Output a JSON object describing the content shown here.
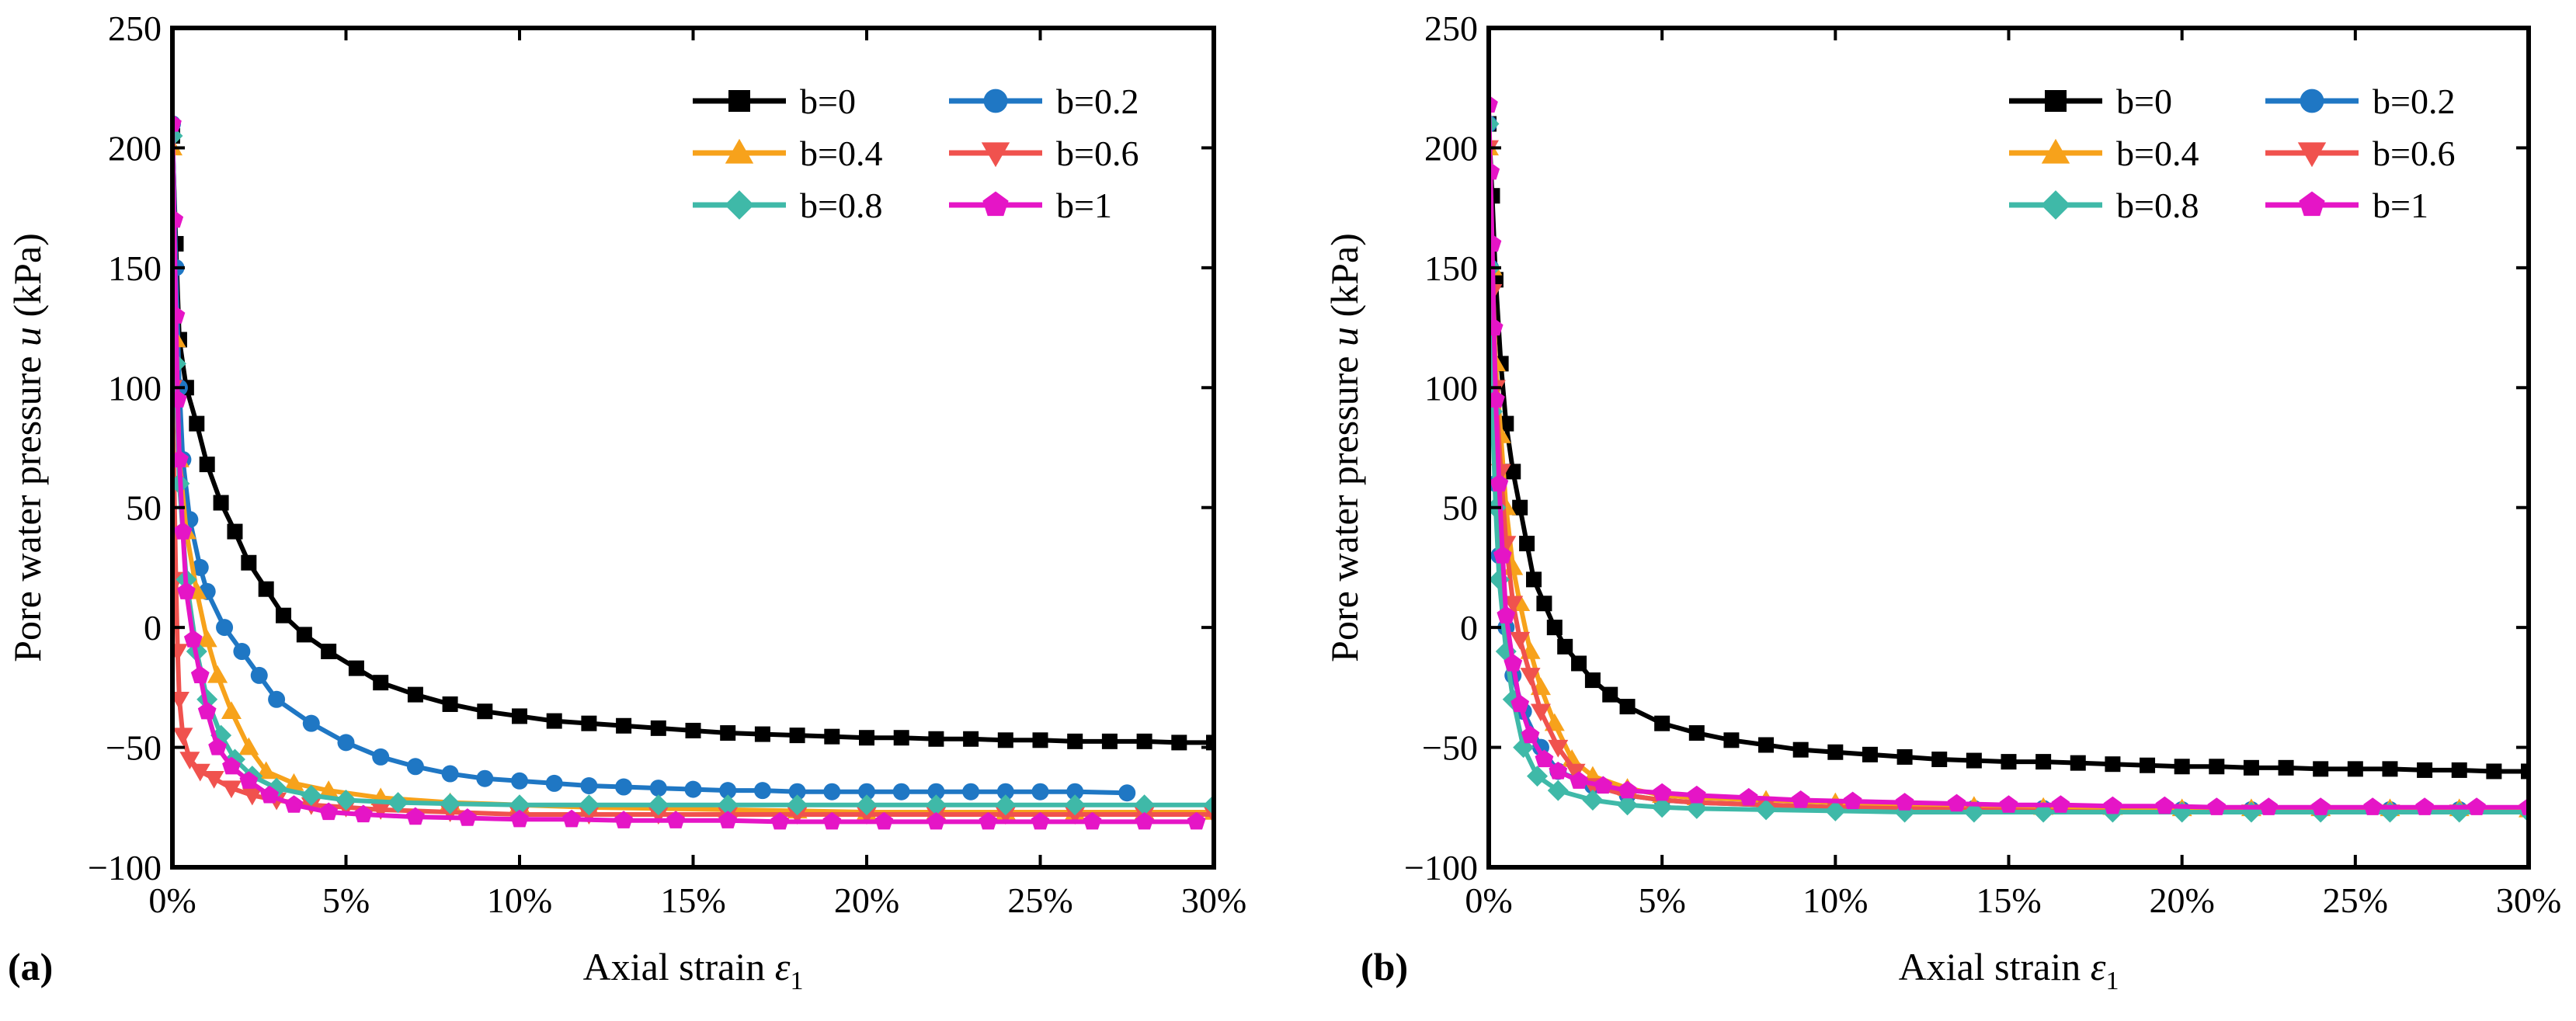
{
  "chart_data": [
    {
      "type": "line",
      "panel_label": "(a)",
      "xlabel": "Axial strain",
      "xlabel_symbol": "ε",
      "xlabel_sub": "1",
      "ylabel": "Pore water pressure",
      "ylabel_symbol": "u",
      "ylabel_unit": "(kPa)",
      "xlim": [
        0,
        30
      ],
      "ylim": [
        -100,
        250
      ],
      "xticks": [
        0,
        5,
        10,
        15,
        20,
        25,
        30
      ],
      "xtick_labels": [
        "0%",
        "5%",
        "10%",
        "15%",
        "20%",
        "25%",
        "30%"
      ],
      "yticks": [
        -100,
        -50,
        0,
        50,
        100,
        150,
        200,
        250
      ],
      "ytick_labels": [
        "−100",
        "−50",
        "0",
        "50",
        "100",
        "150",
        "200",
        "250"
      ],
      "grid": false,
      "legend_position": "top-right",
      "series": [
        {
          "name": "b=0",
          "color": "#000000",
          "marker": "square",
          "x": [
            0,
            0.1,
            0.2,
            0.4,
            0.7,
            1,
            1.4,
            1.8,
            2.2,
            2.7,
            3.2,
            3.8,
            4.5,
            5.3,
            6,
            7,
            8,
            9,
            10,
            11,
            12,
            13,
            14,
            15,
            16,
            17,
            18,
            19,
            20,
            21,
            22,
            23,
            24,
            25,
            26,
            27,
            28,
            29,
            30
          ],
          "y": [
            205,
            160,
            120,
            100,
            85,
            68,
            52,
            40,
            27,
            16,
            5,
            -3,
            -10,
            -17,
            -23,
            -28,
            -32,
            -35,
            -37,
            -39,
            -40,
            -41,
            -42,
            -43,
            -44,
            -44.5,
            -45,
            -45.5,
            -46,
            -46,
            -46.5,
            -46.5,
            -47,
            -47,
            -47.5,
            -47.5,
            -47.5,
            -48,
            -48
          ]
        },
        {
          "name": "b=0.2",
          "color": "#1f77c4",
          "marker": "circle",
          "x": [
            0,
            0.1,
            0.2,
            0.3,
            0.5,
            0.8,
            1,
            1.5,
            2,
            2.5,
            3,
            4,
            5,
            6,
            7,
            8,
            9,
            10,
            11,
            12,
            13,
            14,
            15,
            16,
            17,
            18,
            19,
            20,
            21,
            22,
            23,
            24,
            25,
            26,
            27.5
          ],
          "y": [
            210,
            150,
            100,
            70,
            45,
            25,
            15,
            0,
            -10,
            -20,
            -30,
            -40,
            -48,
            -54,
            -58,
            -61,
            -63,
            -64,
            -65,
            -66,
            -66.5,
            -67,
            -67.5,
            -68,
            -68,
            -68.5,
            -68.5,
            -68.5,
            -68.5,
            -68.5,
            -68.5,
            -68.5,
            -68.5,
            -68.5,
            -69
          ]
        },
        {
          "name": "b=0.4",
          "color": "#f7a21b",
          "marker": "triangle-up",
          "x": [
            0,
            0.1,
            0.2,
            0.4,
            0.7,
            1,
            1.3,
            1.7,
            2.2,
            2.7,
            3.5,
            4.5,
            6,
            8,
            10,
            12,
            14,
            16,
            18,
            20,
            22,
            24,
            26,
            28,
            30
          ],
          "y": [
            200,
            120,
            70,
            40,
            15,
            -5,
            -20,
            -35,
            -50,
            -60,
            -65,
            -68,
            -71,
            -73,
            -74,
            -75,
            -75.5,
            -76,
            -76.5,
            -77,
            -77,
            -77,
            -77,
            -77,
            -77
          ]
        },
        {
          "name": "b=0.6",
          "color": "#f0524e",
          "marker": "triangle-down",
          "x": [
            0,
            0.05,
            0.1,
            0.15,
            0.2,
            0.3,
            0.5,
            0.8,
            1.2,
            1.7,
            2.3,
            3,
            4,
            5,
            6,
            8,
            10,
            12,
            14,
            16,
            18,
            20,
            22,
            24,
            26,
            28,
            30
          ],
          "y": [
            100,
            60,
            20,
            -10,
            -30,
            -45,
            -55,
            -60,
            -63,
            -67,
            -70,
            -72,
            -74,
            -75,
            -76,
            -77,
            -78,
            -78,
            -78,
            -78,
            -78,
            -78,
            -78,
            -78,
            -78,
            -78,
            -78
          ]
        },
        {
          "name": "b=0.8",
          "color": "#3fb9a8",
          "marker": "diamond",
          "x": [
            0,
            0.1,
            0.2,
            0.4,
            0.7,
            1,
            1.4,
            1.8,
            2.3,
            3,
            4,
            5,
            6.5,
            8,
            10,
            12,
            14,
            16,
            18,
            20,
            22,
            24,
            26,
            28,
            30
          ],
          "y": [
            205,
            110,
            60,
            20,
            -10,
            -30,
            -45,
            -55,
            -62,
            -67,
            -70,
            -72,
            -73,
            -73.5,
            -74,
            -74,
            -74,
            -74,
            -74,
            -74,
            -74,
            -74,
            -74,
            -74,
            -74
          ]
        },
        {
          "name": "b=1",
          "color": "#e515c6",
          "marker": "pentagon",
          "x": [
            0,
            0.05,
            0.1,
            0.15,
            0.2,
            0.3,
            0.4,
            0.6,
            0.8,
            1,
            1.3,
            1.7,
            2.2,
            2.8,
            3.5,
            4.5,
            5.5,
            7,
            8.5,
            10,
            11.5,
            13,
            14.5,
            16,
            17.5,
            19,
            20.5,
            22,
            23.5,
            25,
            26.5,
            28,
            29.5
          ],
          "y": [
            210,
            170,
            130,
            95,
            70,
            40,
            15,
            -5,
            -20,
            -35,
            -50,
            -58,
            -64,
            -70,
            -74,
            -77,
            -78,
            -79,
            -79.5,
            -80,
            -80,
            -80.5,
            -80.5,
            -80.5,
            -81,
            -81,
            -81,
            -81,
            -81,
            -81,
            -81,
            -81,
            -81
          ]
        }
      ]
    },
    {
      "type": "line",
      "panel_label": "(b)",
      "xlabel": "Axial strain",
      "xlabel_symbol": "ε",
      "xlabel_sub": "1",
      "ylabel": "Pore water pressure",
      "ylabel_symbol": "u",
      "ylabel_unit": "(kPa)",
      "xlim": [
        0,
        30
      ],
      "ylim": [
        -100,
        250
      ],
      "xticks": [
        0,
        5,
        10,
        15,
        20,
        25,
        30
      ],
      "xtick_labels": [
        "0%",
        "5%",
        "10%",
        "15%",
        "20%",
        "25%",
        "30%"
      ],
      "yticks": [
        -100,
        -50,
        0,
        50,
        100,
        150,
        200,
        250
      ],
      "ytick_labels": [
        "−100",
        "−50",
        "0",
        "50",
        "100",
        "150",
        "200",
        "250"
      ],
      "grid": false,
      "legend_position": "top-right",
      "series": [
        {
          "name": "b=0",
          "color": "#000000",
          "marker": "square",
          "x": [
            0,
            0.1,
            0.2,
            0.35,
            0.5,
            0.7,
            0.9,
            1.1,
            1.3,
            1.6,
            1.9,
            2.2,
            2.6,
            3,
            3.5,
            4,
            5,
            6,
            7,
            8,
            9,
            10,
            11,
            12,
            13,
            14,
            15,
            16,
            17,
            18,
            19,
            20,
            21,
            22,
            23,
            24,
            25,
            26,
            27,
            28,
            29,
            30
          ],
          "y": [
            210,
            180,
            145,
            110,
            85,
            65,
            50,
            35,
            20,
            10,
            0,
            -8,
            -15,
            -22,
            -28,
            -33,
            -40,
            -44,
            -47,
            -49,
            -51,
            -52,
            -53,
            -54,
            -55,
            -55.5,
            -56,
            -56,
            -56.5,
            -57,
            -57.5,
            -58,
            -58,
            -58.5,
            -58.5,
            -59,
            -59,
            -59,
            -59.5,
            -59.5,
            -60,
            -60
          ]
        },
        {
          "name": "b=0.2",
          "color": "#1f77c4",
          "marker": "circle",
          "x": [
            0,
            0.05,
            0.1,
            0.2,
            0.3,
            0.5,
            0.7,
            1,
            1.5,
            2,
            3,
            4,
            5,
            6,
            8,
            10,
            12,
            14,
            16,
            18,
            20,
            22,
            24,
            26,
            28,
            30
          ],
          "y": [
            210,
            150,
            100,
            60,
            30,
            0,
            -20,
            -35,
            -50,
            -60,
            -66,
            -70,
            -72,
            -73,
            -74,
            -75,
            -75,
            -75.5,
            -75.5,
            -76,
            -76,
            -76,
            -76,
            -76,
            -76,
            -76
          ]
        },
        {
          "name": "b=0.4",
          "color": "#f7a21b",
          "marker": "triangle-up",
          "x": [
            0,
            0.1,
            0.2,
            0.35,
            0.5,
            0.7,
            0.9,
            1.2,
            1.5,
            1.9,
            2.4,
            3,
            4,
            5,
            6,
            8,
            10,
            12,
            14,
            16,
            18,
            20,
            22,
            24,
            26,
            28,
            30
          ],
          "y": [
            200,
            150,
            110,
            80,
            50,
            25,
            10,
            -10,
            -25,
            -40,
            -55,
            -62,
            -67,
            -70,
            -71,
            -72,
            -73,
            -74,
            -74.5,
            -75,
            -75,
            -75.5,
            -75.5,
            -75.5,
            -75.5,
            -75.5,
            -76
          ]
        },
        {
          "name": "b=0.6",
          "color": "#f0524e",
          "marker": "triangle-down",
          "x": [
            0,
            0.1,
            0.2,
            0.35,
            0.5,
            0.7,
            0.9,
            1.2,
            1.5,
            2,
            2.5,
            3,
            4,
            5,
            6,
            8,
            10,
            12,
            14,
            16,
            18,
            20,
            22,
            24,
            26,
            28,
            30
          ],
          "y": [
            200,
            140,
            100,
            65,
            35,
            10,
            -5,
            -20,
            -35,
            -50,
            -60,
            -66,
            -70,
            -72,
            -73,
            -74,
            -75,
            -75.5,
            -76,
            -76.5,
            -77,
            -77,
            -77,
            -77,
            -77,
            -77,
            -77
          ]
        },
        {
          "name": "b=0.8",
          "color": "#3fb9a8",
          "marker": "diamond",
          "x": [
            0,
            0.05,
            0.1,
            0.2,
            0.3,
            0.5,
            0.7,
            1,
            1.4,
            2,
            3,
            4,
            5,
            6,
            8,
            10,
            12,
            14,
            16,
            18,
            20,
            22,
            24,
            26,
            28,
            30
          ],
          "y": [
            210,
            150,
            90,
            50,
            20,
            -10,
            -30,
            -50,
            -62,
            -68,
            -72,
            -74,
            -75,
            -75.5,
            -76,
            -76.5,
            -77,
            -77,
            -77,
            -77,
            -77,
            -77,
            -77,
            -77,
            -77,
            -77
          ]
        },
        {
          "name": "b=1",
          "color": "#e515c6",
          "marker": "pentagon",
          "x": [
            0,
            0.05,
            0.1,
            0.15,
            0.2,
            0.3,
            0.4,
            0.5,
            0.7,
            0.9,
            1.2,
            1.6,
            2,
            2.6,
            3.3,
            4,
            5,
            6,
            7.5,
            9,
            10.5,
            12,
            13.5,
            15,
            16.5,
            18,
            19.5,
            21,
            22.5,
            24,
            25.5,
            27,
            28.5,
            30
          ],
          "y": [
            218,
            190,
            160,
            125,
            95,
            60,
            30,
            5,
            -15,
            -32,
            -45,
            -55,
            -60,
            -64,
            -66,
            -68,
            -69,
            -70,
            -71,
            -72,
            -72.5,
            -73,
            -73.5,
            -74,
            -74,
            -74.5,
            -74.5,
            -75,
            -75,
            -75,
            -75,
            -75,
            -75,
            -75
          ]
        }
      ]
    }
  ]
}
